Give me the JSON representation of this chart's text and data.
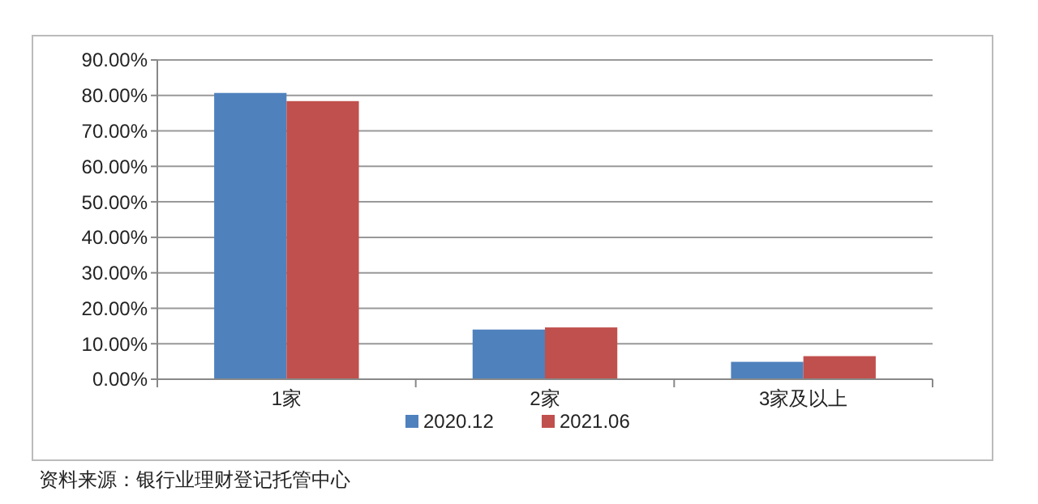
{
  "chart_data": {
    "type": "bar",
    "categories": [
      "1家",
      "2家",
      "3家及以上"
    ],
    "series": [
      {
        "name": "2020.12",
        "color": "#4f81bd",
        "values": [
          80.7,
          14.0,
          4.9
        ]
      },
      {
        "name": "2021.06",
        "color": "#c0504d",
        "values": [
          78.4,
          14.6,
          6.5
        ]
      }
    ],
    "ylim": [
      0,
      90
    ],
    "yticks": [
      {
        "value": 0,
        "label": "0.00%"
      },
      {
        "value": 10,
        "label": "10.00%"
      },
      {
        "value": 20,
        "label": "20.00%"
      },
      {
        "value": 30,
        "label": "30.00%"
      },
      {
        "value": 40,
        "label": "40.00%"
      },
      {
        "value": 50,
        "label": "50.00%"
      },
      {
        "value": 60,
        "label": "60.00%"
      },
      {
        "value": 70,
        "label": "70.00%"
      },
      {
        "value": 80,
        "label": "80.00%"
      },
      {
        "value": 90,
        "label": "90.00%"
      }
    ],
    "grid": "y",
    "legend": "bottom",
    "annotations": [
      "资料来源：银行业理财登记托管中心"
    ]
  }
}
